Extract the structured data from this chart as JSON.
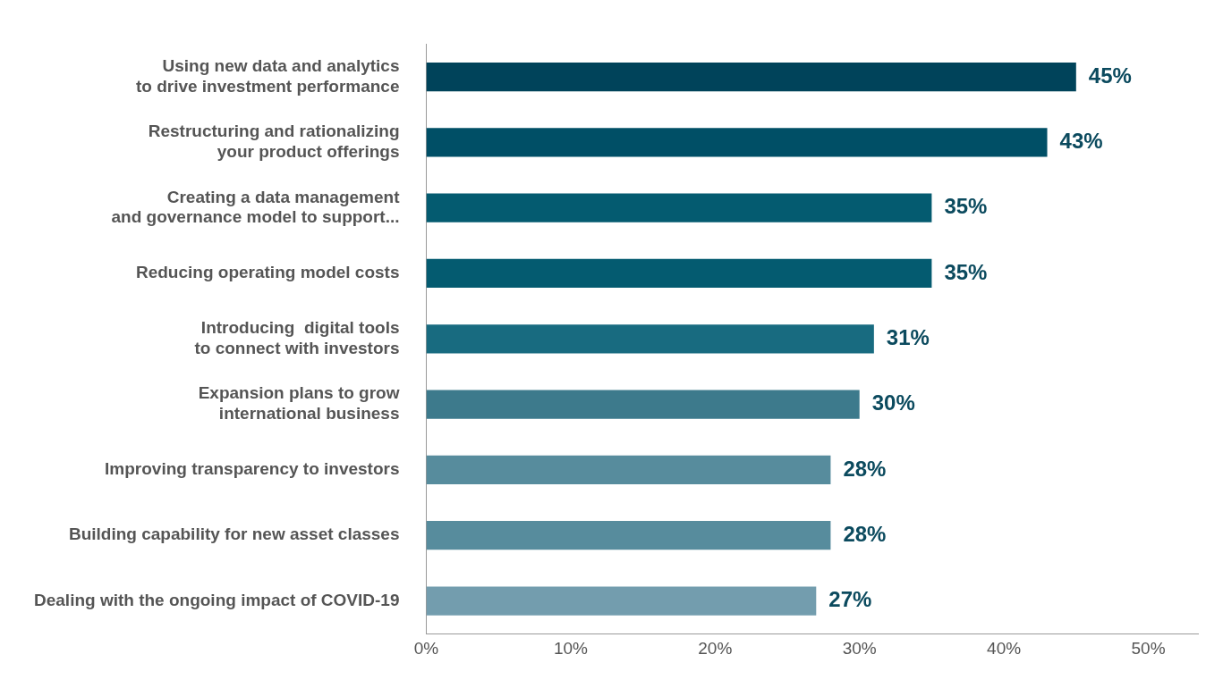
{
  "chart_data": {
    "type": "bar",
    "orientation": "horizontal",
    "categories": [
      "Using new data and analytics\nto drive investment performance",
      "Restructuring and rationalizing\nyour product offerings",
      "Creating a data management\nand governance model to support...",
      "Reducing operating model costs",
      "Introducing  digital tools\nto connect with investors",
      "Expansion plans to grow\ninternational business",
      "Improving transparency to investors",
      "Building capability for new asset classes",
      "Dealing with the ongoing impact of COVID-19"
    ],
    "values": [
      45,
      43,
      35,
      35,
      31,
      30,
      28,
      28,
      27
    ],
    "colors": [
      "#00435a",
      "#004f66",
      "#045b70",
      "#045b70",
      "#186b80",
      "#3d7a8c",
      "#578c9d",
      "#578c9d",
      "#739dae"
    ],
    "xlim": [
      0,
      53.5
    ],
    "xticks": [
      {
        "value": 0,
        "label": "0%"
      },
      {
        "value": 10,
        "label": "10%"
      },
      {
        "value": 20,
        "label": "20%"
      },
      {
        "value": 30,
        "label": "30%"
      },
      {
        "value": 40,
        "label": "40%"
      },
      {
        "value": 50,
        "label": "50%"
      }
    ],
    "value_labels": [
      "45%",
      "43%",
      "35%",
      "35%",
      "31%",
      "30%",
      "28%",
      "28%",
      "27%"
    ],
    "grid": false,
    "legend": false
  }
}
